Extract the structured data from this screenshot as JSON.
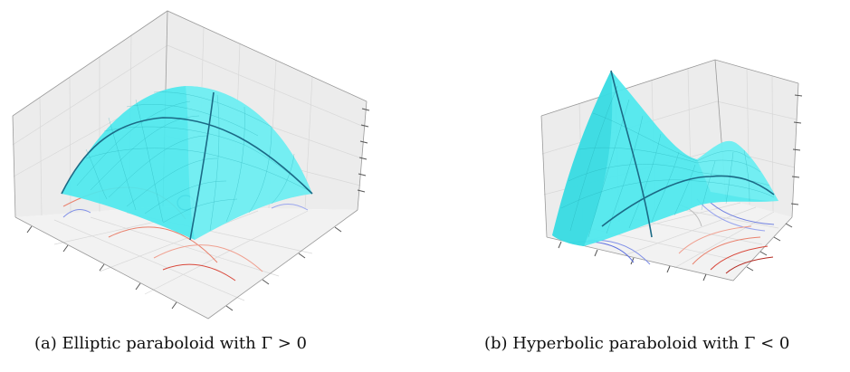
{
  "figure": {
    "panels": [
      {
        "id": "a",
        "caption": "(a) Elliptic paraboloid with Γ > 0",
        "surface_type": "elliptic paraboloid",
        "surface_color": "#4ee8ee",
        "edge_color": "#1b6a86"
      },
      {
        "id": "b",
        "caption": "(b) Hyperbolic paraboloid with Γ < 0",
        "surface_type": "hyperbolic paraboloid",
        "surface_color": "#4ee8ee",
        "edge_color": "#1b6a86"
      }
    ],
    "contour_colors": {
      "positive": "#d9483b",
      "negative": "#5c6fe0"
    }
  }
}
